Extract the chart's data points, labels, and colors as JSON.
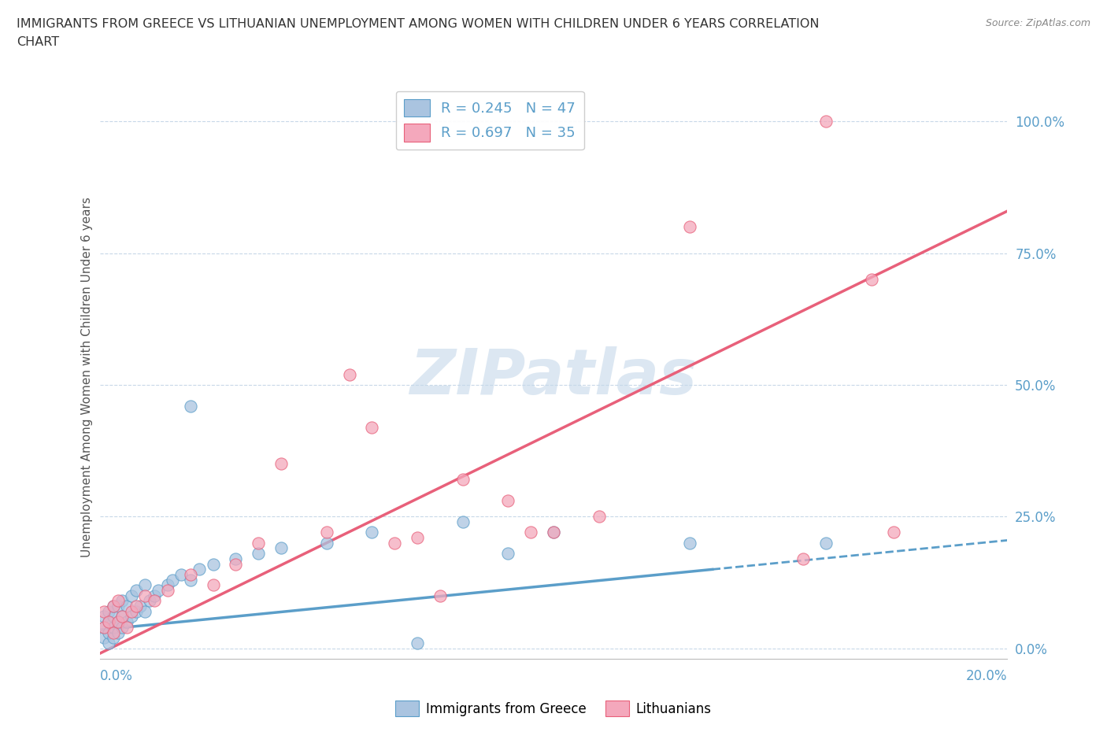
{
  "title_line1": "IMMIGRANTS FROM GREECE VS LITHUANIAN UNEMPLOYMENT AMONG WOMEN WITH CHILDREN UNDER 6 YEARS CORRELATION",
  "title_line2": "CHART",
  "source": "Source: ZipAtlas.com",
  "ylabel": "Unemployment Among Women with Children Under 6 years",
  "legend1_label": "R = 0.245   N = 47",
  "legend2_label": "R = 0.697   N = 35",
  "series1_label": "Immigrants from Greece",
  "series2_label": "Lithuanians",
  "color1": "#aac4e0",
  "color2": "#f4a8bc",
  "trendline1_color": "#5b9ec9",
  "trendline2_color": "#e8607a",
  "watermark_color": "#c5d8ea",
  "grid_color": "#c8d8e8",
  "tick_color": "#5b9ec9",
  "background_color": "#ffffff",
  "xlim": [
    0.0,
    0.2
  ],
  "ylim": [
    -0.02,
    1.05
  ],
  "scatter1_x": [
    0.001,
    0.001,
    0.001,
    0.002,
    0.002,
    0.002,
    0.002,
    0.003,
    0.003,
    0.003,
    0.003,
    0.004,
    0.004,
    0.004,
    0.005,
    0.005,
    0.005,
    0.006,
    0.006,
    0.007,
    0.007,
    0.008,
    0.008,
    0.009,
    0.01,
    0.01,
    0.011,
    0.012,
    0.013,
    0.015,
    0.016,
    0.018,
    0.02,
    0.022,
    0.025,
    0.03,
    0.035,
    0.04,
    0.05,
    0.06,
    0.07,
    0.08,
    0.09,
    0.1,
    0.13,
    0.16,
    0.02
  ],
  "scatter1_y": [
    0.02,
    0.04,
    0.06,
    0.01,
    0.03,
    0.05,
    0.07,
    0.02,
    0.04,
    0.06,
    0.08,
    0.03,
    0.05,
    0.08,
    0.04,
    0.06,
    0.09,
    0.05,
    0.08,
    0.06,
    0.1,
    0.07,
    0.11,
    0.08,
    0.07,
    0.12,
    0.09,
    0.1,
    0.11,
    0.12,
    0.13,
    0.14,
    0.46,
    0.15,
    0.16,
    0.17,
    0.18,
    0.19,
    0.2,
    0.22,
    0.01,
    0.24,
    0.18,
    0.22,
    0.2,
    0.2,
    0.13
  ],
  "scatter2_x": [
    0.001,
    0.001,
    0.002,
    0.003,
    0.003,
    0.004,
    0.004,
    0.005,
    0.006,
    0.007,
    0.008,
    0.01,
    0.012,
    0.015,
    0.02,
    0.025,
    0.03,
    0.035,
    0.04,
    0.05,
    0.055,
    0.06,
    0.065,
    0.07,
    0.075,
    0.08,
    0.09,
    0.095,
    0.1,
    0.11,
    0.13,
    0.155,
    0.16,
    0.17,
    0.175
  ],
  "scatter2_y": [
    0.04,
    0.07,
    0.05,
    0.03,
    0.08,
    0.05,
    0.09,
    0.06,
    0.04,
    0.07,
    0.08,
    0.1,
    0.09,
    0.11,
    0.14,
    0.12,
    0.16,
    0.2,
    0.35,
    0.22,
    0.52,
    0.42,
    0.2,
    0.21,
    0.1,
    0.32,
    0.28,
    0.22,
    0.22,
    0.25,
    0.8,
    0.17,
    1.0,
    0.7,
    0.22
  ],
  "trendline1_slope": 0.85,
  "trendline1_intercept": 0.035,
  "trendline2_slope": 4.2,
  "trendline2_intercept": -0.01
}
